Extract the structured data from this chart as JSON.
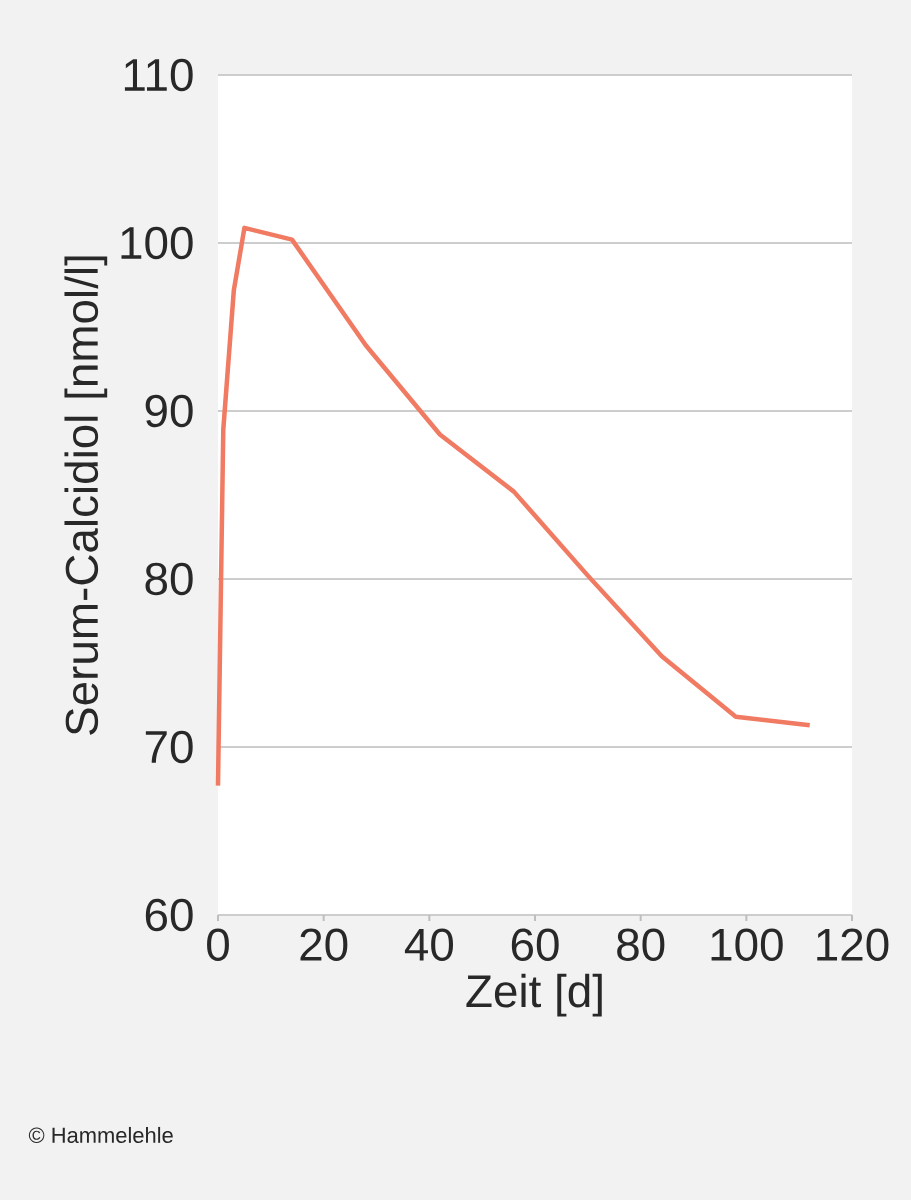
{
  "chart_data": {
    "type": "line",
    "x": [
      0,
      1,
      3,
      5,
      14,
      28,
      42,
      56,
      70,
      84,
      98,
      112
    ],
    "values": [
      67.7,
      88.9,
      97.2,
      100.9,
      100.2,
      93.9,
      88.6,
      85.2,
      80.2,
      75.4,
      71.8,
      71.3
    ],
    "color": "#f07a62",
    "line_style": "solid",
    "xlim": [
      0,
      120
    ],
    "ylim": [
      60,
      110
    ],
    "xticks": [
      0,
      20,
      40,
      60,
      80,
      100,
      120
    ],
    "yticks": [
      60,
      70,
      80,
      90,
      100,
      110
    ],
    "grid": "y",
    "xlabel": "Zeit [d]",
    "ylabel": "Serum-Calcidiol [nmol/l]",
    "annotations": [
      "© Hammelehle"
    ]
  }
}
